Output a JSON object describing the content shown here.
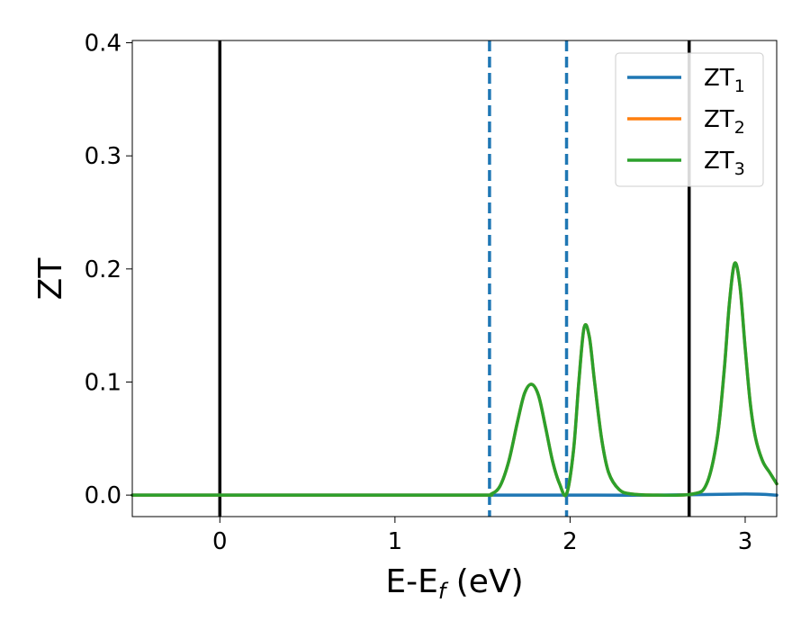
{
  "chart_data": {
    "type": "line",
    "xlabel": {
      "main": "E-E",
      "sub": "f",
      "tail": " (eV)"
    },
    "ylabel": "ZT",
    "xlim": [
      -0.5,
      3.18
    ],
    "ylim": [
      -0.019,
      0.402
    ],
    "xticks": [
      0,
      1,
      2,
      3
    ],
    "yticks": [
      0.0,
      0.1,
      0.2,
      0.3,
      0.4
    ],
    "xtick_labels": [
      "0",
      "1",
      "2",
      "3"
    ],
    "ytick_labels": [
      "0.0",
      "0.1",
      "0.2",
      "0.3",
      "0.4"
    ],
    "grid": false,
    "legend_placement": "top-right",
    "series": [
      {
        "name": "ZT",
        "sub": "1",
        "color": "#1f77b4",
        "x": [
          -0.5,
          0.0,
          0.5,
          1.0,
          1.5,
          2.0,
          2.5,
          3.0,
          3.18
        ],
        "y": [
          0.0,
          0.0,
          0.0,
          0.0,
          0.0,
          0.0,
          0.0,
          0.001,
          0.0
        ]
      },
      {
        "name": "ZT",
        "sub": "2",
        "color": "#ff7f0e",
        "x": [
          -0.5,
          0.0,
          0.5,
          1.0,
          1.5,
          1.55,
          1.6,
          1.65,
          1.7,
          1.74,
          1.78,
          1.82,
          1.86,
          1.9,
          1.94,
          1.98,
          2.02,
          2.05,
          2.08,
          2.11,
          2.14,
          2.18,
          2.22,
          2.28,
          2.35,
          2.5,
          2.7,
          2.78,
          2.84,
          2.88,
          2.91,
          2.94,
          2.97,
          3.0,
          3.03,
          3.06,
          3.1,
          3.14,
          3.18
        ],
        "y": [
          0.0,
          0.0,
          0.0,
          0.0,
          0.0,
          0.001,
          0.008,
          0.03,
          0.065,
          0.09,
          0.098,
          0.088,
          0.06,
          0.03,
          0.01,
          0.001,
          0.04,
          0.1,
          0.148,
          0.14,
          0.1,
          0.05,
          0.02,
          0.005,
          0.001,
          0.0,
          0.001,
          0.01,
          0.05,
          0.11,
          0.17,
          0.205,
          0.185,
          0.13,
          0.08,
          0.05,
          0.03,
          0.02,
          0.01
        ]
      },
      {
        "name": "ZT",
        "sub": "3",
        "color": "#2ca02c",
        "x": [
          -0.5,
          0.0,
          0.5,
          1.0,
          1.5,
          1.55,
          1.6,
          1.65,
          1.7,
          1.74,
          1.78,
          1.82,
          1.86,
          1.9,
          1.94,
          1.98,
          2.02,
          2.05,
          2.08,
          2.11,
          2.14,
          2.18,
          2.22,
          2.28,
          2.35,
          2.5,
          2.7,
          2.78,
          2.84,
          2.88,
          2.91,
          2.94,
          2.97,
          3.0,
          3.03,
          3.06,
          3.1,
          3.14,
          3.18
        ],
        "y": [
          0.0,
          0.0,
          0.0,
          0.0,
          0.0,
          0.001,
          0.008,
          0.03,
          0.065,
          0.09,
          0.098,
          0.088,
          0.06,
          0.03,
          0.01,
          0.001,
          0.04,
          0.1,
          0.148,
          0.14,
          0.1,
          0.05,
          0.02,
          0.005,
          0.001,
          0.0,
          0.001,
          0.01,
          0.05,
          0.11,
          0.17,
          0.205,
          0.185,
          0.13,
          0.08,
          0.05,
          0.03,
          0.02,
          0.01
        ]
      }
    ],
    "vlines": [
      {
        "x": 0.0,
        "color": "#000000",
        "style": "solid"
      },
      {
        "x": 2.68,
        "color": "#000000",
        "style": "solid"
      },
      {
        "x": 1.54,
        "color": "#1f77b4",
        "style": "dashed"
      },
      {
        "x": 1.98,
        "color": "#1f77b4",
        "style": "dashed"
      }
    ]
  }
}
